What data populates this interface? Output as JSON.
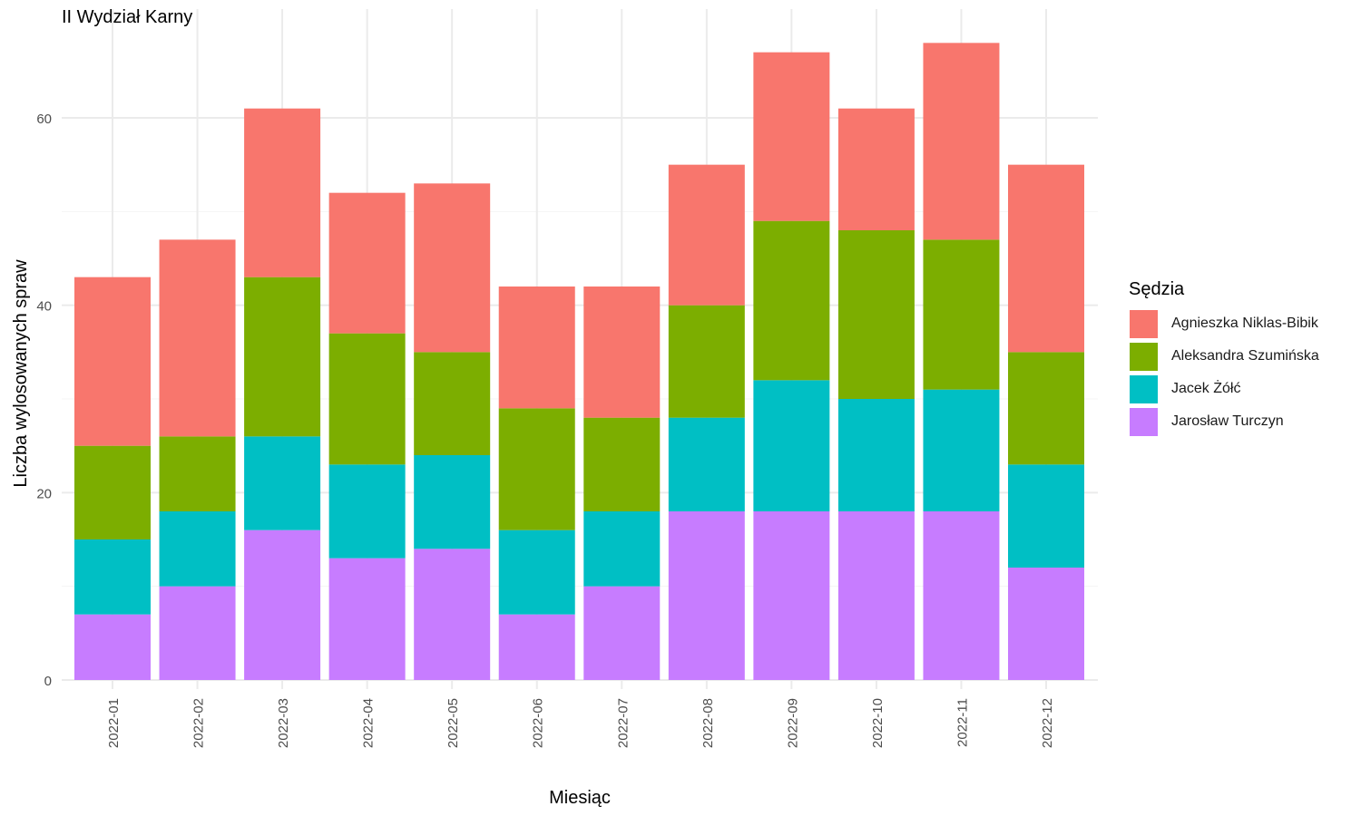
{
  "chart_data": {
    "type": "bar",
    "stacked": true,
    "title": "II Wydział Karny",
    "xlabel": "Miesiąc",
    "ylabel": "Liczba wylosowanych spraw",
    "ylim": [
      0,
      70
    ],
    "y_ticks": [
      0,
      20,
      40,
      60
    ],
    "y_tick_labels": [
      "0",
      "20",
      "40",
      "60"
    ],
    "grid": true,
    "legend_title": "Sędzia",
    "legend_position": "right",
    "categories": [
      "2022-01",
      "2022-02",
      "2022-03",
      "2022-04",
      "2022-05",
      "2022-06",
      "2022-07",
      "2022-08",
      "2022-09",
      "2022-10",
      "2022-11",
      "2022-12"
    ],
    "series": [
      {
        "name": "Jarosław Turczyn",
        "color": "#C77CFF",
        "values": [
          7,
          10,
          16,
          13,
          14,
          7,
          10,
          18,
          18,
          18,
          18,
          12
        ]
      },
      {
        "name": "Jacek Żółć",
        "color": "#00BFC4",
        "values": [
          8,
          8,
          10,
          10,
          10,
          9,
          8,
          10,
          14,
          12,
          13,
          11
        ]
      },
      {
        "name": "Aleksandra Szumińska",
        "color": "#7CAE00",
        "values": [
          10,
          8,
          17,
          14,
          11,
          13,
          10,
          12,
          17,
          18,
          16,
          12
        ]
      },
      {
        "name": "Agnieszka Niklas-Bibik",
        "color": "#F8766D",
        "values": [
          18,
          21,
          18,
          15,
          18,
          13,
          14,
          15,
          18,
          13,
          21,
          20
        ]
      }
    ],
    "legend_order": [
      "Agnieszka Niklas-Bibik",
      "Aleksandra Szumińska",
      "Jacek Żółć",
      "Jarosław Turczyn"
    ]
  }
}
